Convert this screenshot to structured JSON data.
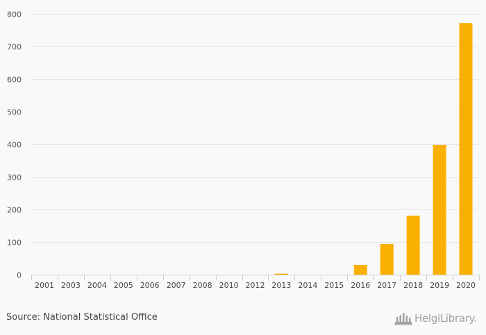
{
  "chart_data": {
    "type": "bar",
    "categories": [
      "2001",
      "2003",
      "2004",
      "2005",
      "2006",
      "2007",
      "2008",
      "2010",
      "2012",
      "2013",
      "2014",
      "2015",
      "2016",
      "2017",
      "2018",
      "2019",
      "2020"
    ],
    "values": [
      0,
      0,
      0,
      0,
      0,
      0,
      0,
      0,
      0,
      3,
      0,
      0,
      30,
      94,
      181,
      398,
      772
    ],
    "ylim": [
      0,
      800
    ],
    "yticks": [
      0,
      100,
      200,
      300,
      400,
      500,
      600,
      700,
      800
    ],
    "grid": true,
    "legend": "none",
    "bar_color": "#f9b000"
  },
  "footer": {
    "source": "Source: National Statistical Office",
    "logo_text": "HelgiLibrary."
  }
}
